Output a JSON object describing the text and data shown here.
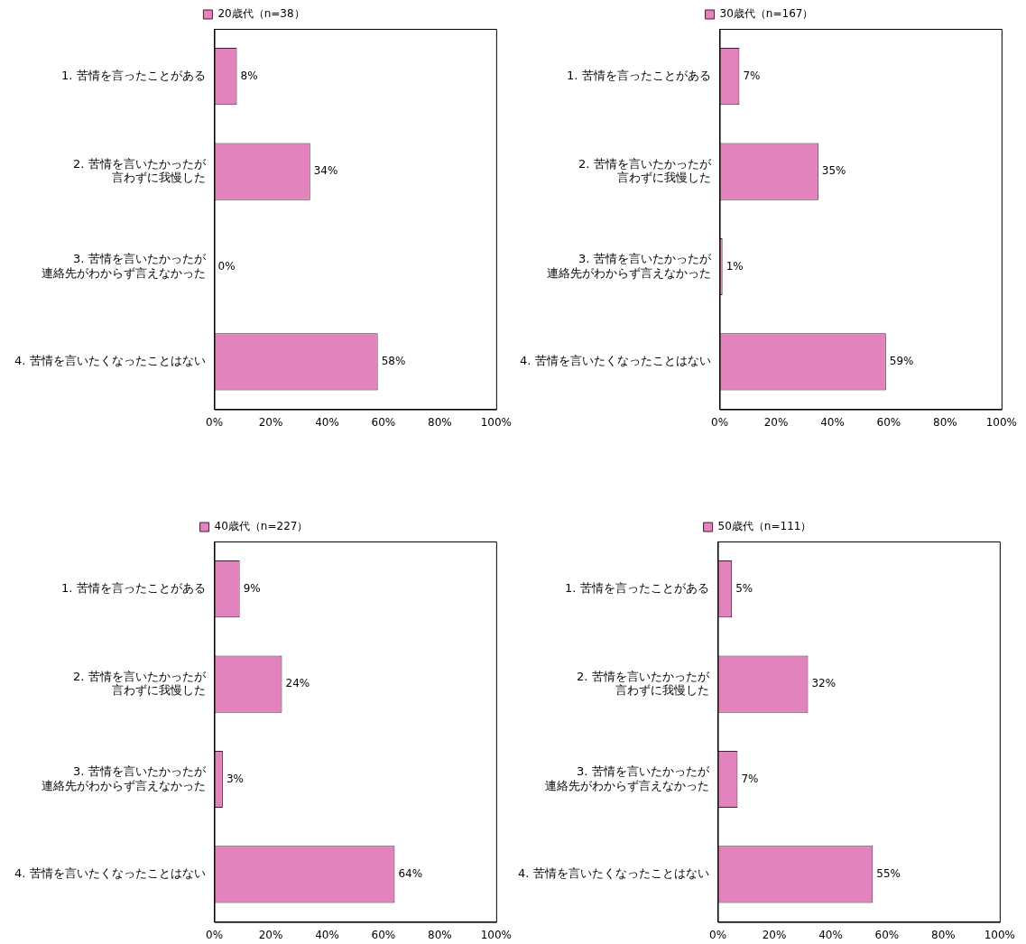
{
  "chart_data": [
    {
      "type": "bar",
      "orientation": "horizontal",
      "categories": [
        "1. 苦情を言ったことがある",
        "2. 苦情を言いたかったが言わずに我慢した",
        "3. 苦情を言いたかったが連絡先がわからず言えなかった",
        "4. 苦情を言いたくなったことはない"
      ],
      "series": [
        {
          "name": "20歳代（n=38）",
          "color": "#e383bd",
          "values": [
            8,
            34,
            0,
            58
          ],
          "value_labels": [
            "8%",
            "34%",
            "0%",
            "58%"
          ]
        }
      ],
      "xlim": [
        0,
        100
      ],
      "xticks": [
        {
          "value": 0,
          "label": "0%"
        },
        {
          "value": 20,
          "label": "20%"
        },
        {
          "value": 40,
          "label": "40%"
        },
        {
          "value": 60,
          "label": "60%"
        },
        {
          "value": 80,
          "label": "80%"
        },
        {
          "value": 100,
          "label": "100%"
        }
      ],
      "grid": false,
      "legend": "top"
    },
    {
      "type": "bar",
      "orientation": "horizontal",
      "categories": [
        "1. 苦情を言ったことがある",
        "2. 苦情を言いたかったが言わずに我慢した",
        "3. 苦情を言いたかったが連絡先がわからず言えなかった",
        "4. 苦情を言いたくなったことはない"
      ],
      "series": [
        {
          "name": "30歳代（n=167）",
          "color": "#e383bd",
          "values": [
            7,
            35,
            1,
            59
          ],
          "value_labels": [
            "7%",
            "35%",
            "1%",
            "59%"
          ]
        }
      ],
      "xlim": [
        0,
        100
      ],
      "xticks": [
        {
          "value": 0,
          "label": "0%"
        },
        {
          "value": 20,
          "label": "20%"
        },
        {
          "value": 40,
          "label": "40%"
        },
        {
          "value": 60,
          "label": "60%"
        },
        {
          "value": 80,
          "label": "80%"
        },
        {
          "value": 100,
          "label": "100%"
        }
      ],
      "grid": false,
      "legend": "top"
    },
    {
      "type": "bar",
      "orientation": "horizontal",
      "categories": [
        "1. 苦情を言ったことがある",
        "2. 苦情を言いたかったが言わずに我慢した",
        "3. 苦情を言いたかったが連絡先がわからず言えなかった",
        "4. 苦情を言いたくなったことはない"
      ],
      "series": [
        {
          "name": "40歳代（n=227）",
          "color": "#e383bd",
          "values": [
            9,
            24,
            3,
            64
          ],
          "value_labels": [
            "9%",
            "24%",
            "3%",
            "64%"
          ]
        }
      ],
      "xlim": [
        0,
        100
      ],
      "xticks": [
        {
          "value": 0,
          "label": "0%"
        },
        {
          "value": 20,
          "label": "20%"
        },
        {
          "value": 40,
          "label": "40%"
        },
        {
          "value": 60,
          "label": "60%"
        },
        {
          "value": 80,
          "label": "80%"
        },
        {
          "value": 100,
          "label": "100%"
        }
      ],
      "grid": false,
      "legend": "top"
    },
    {
      "type": "bar",
      "orientation": "horizontal",
      "categories": [
        "1. 苦情を言ったことがある",
        "2. 苦情を言いたかったが言わずに我慢した",
        "3. 苦情を言いたかったが連絡先がわからず言えなかった",
        "4. 苦情を言いたくなったことはない"
      ],
      "series": [
        {
          "name": "50歳代（n=111）",
          "color": "#e383bd",
          "values": [
            5,
            32,
            7,
            55
          ],
          "value_labels": [
            "5%",
            "32%",
            "7%",
            "55%"
          ]
        }
      ],
      "xlim": [
        0,
        100
      ],
      "xticks": [
        {
          "value": 0,
          "label": "0%"
        },
        {
          "value": 20,
          "label": "20%"
        },
        {
          "value": 40,
          "label": "40%"
        },
        {
          "value": 60,
          "label": "60%"
        },
        {
          "value": 80,
          "label": "80%"
        },
        {
          "value": 100,
          "label": "100%"
        }
      ],
      "grid": false,
      "legend": "top"
    }
  ]
}
